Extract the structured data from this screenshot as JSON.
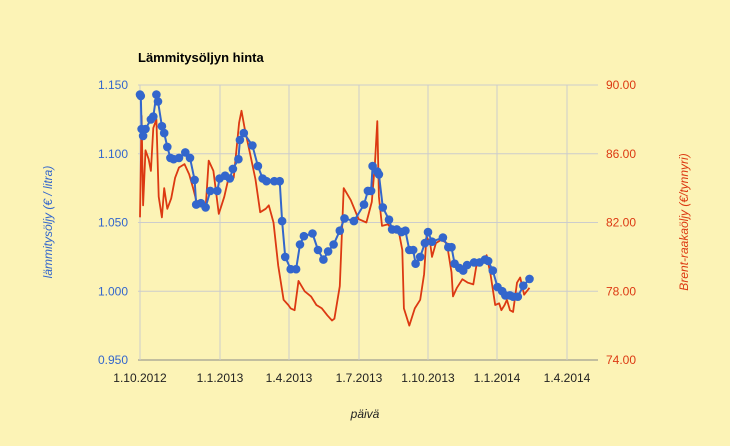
{
  "chart_data": {
    "type": "line",
    "title": "Lämmitysöljyn hinta",
    "xlabel": "päivä",
    "ylabel_left": "lämmitysöljy (€ / litra)",
    "ylabel_right": "Brent-raakaöljy (€/tynnyri)",
    "x_ticks": [
      "1.10.2012",
      "1.1.2013",
      "1.4.2013",
      "1.7.2013",
      "1.10.2013",
      "1.1.2014",
      "1.4.2014"
    ],
    "y_left_ticks": [
      "0.950",
      "1.000",
      "1.050",
      "1.100",
      "1.150"
    ],
    "y_right_ticks": [
      "74.00",
      "78.00",
      "82.00",
      "86.00",
      "90.00"
    ],
    "ylim_left": [
      0.95,
      1.15
    ],
    "ylim_right": [
      74,
      90
    ],
    "grid": true,
    "colors": {
      "left_series": "#3366cc",
      "right_series": "#dc3912",
      "background": "#fcf3b6",
      "grid": "#cccccc"
    },
    "series": [
      {
        "axis": "left",
        "marker": "circle",
        "points": [
          [
            "2012-10-01",
            1.143
          ],
          [
            "2012-10-02",
            1.142
          ],
          [
            "2012-10-03",
            1.118
          ],
          [
            "2012-10-05",
            1.113
          ],
          [
            "2012-10-08",
            1.118
          ],
          [
            "2012-10-15",
            1.125
          ],
          [
            "2012-10-18",
            1.127
          ],
          [
            "2012-10-22",
            1.143
          ],
          [
            "2012-10-24",
            1.138
          ],
          [
            "2012-10-29",
            1.12
          ],
          [
            "2012-11-01",
            1.115
          ],
          [
            "2012-11-05",
            1.105
          ],
          [
            "2012-11-09",
            1.097
          ],
          [
            "2012-11-13",
            1.096
          ],
          [
            "2012-11-20",
            1.097
          ],
          [
            "2012-11-28",
            1.101
          ],
          [
            "2012-12-04",
            1.097
          ],
          [
            "2012-12-10",
            1.081
          ],
          [
            "2012-12-12",
            1.063
          ],
          [
            "2012-12-18",
            1.064
          ],
          [
            "2012-12-24",
            1.061
          ],
          [
            "2012-12-30",
            1.073
          ],
          [
            "2013-01-08",
            1.073
          ],
          [
            "2013-01-11",
            1.082
          ],
          [
            "2013-01-18",
            1.084
          ],
          [
            "2013-01-24",
            1.082
          ],
          [
            "2013-01-28",
            1.089
          ],
          [
            "2013-02-04",
            1.096
          ],
          [
            "2013-02-06",
            1.11
          ],
          [
            "2013-02-11",
            1.115
          ],
          [
            "2013-02-22",
            1.106
          ],
          [
            "2013-03-01",
            1.091
          ],
          [
            "2013-03-07",
            1.082
          ],
          [
            "2013-03-12",
            1.08
          ],
          [
            "2013-03-22",
            1.08
          ],
          [
            "2013-03-29",
            1.08
          ],
          [
            "2013-04-01",
            1.051
          ],
          [
            "2013-04-05",
            1.025
          ],
          [
            "2013-04-12",
            1.016
          ],
          [
            "2013-04-19",
            1.016
          ],
          [
            "2013-04-24",
            1.034
          ],
          [
            "2013-04-29",
            1.04
          ],
          [
            "2013-05-10",
            1.042
          ],
          [
            "2013-05-17",
            1.03
          ],
          [
            "2013-05-24",
            1.023
          ],
          [
            "2013-05-30",
            1.029
          ],
          [
            "2013-06-06",
            1.034
          ],
          [
            "2013-06-14",
            1.044
          ],
          [
            "2013-06-20",
            1.053
          ],
          [
            "2013-07-02",
            1.051
          ],
          [
            "2013-07-15",
            1.063
          ],
          [
            "2013-07-20",
            1.073
          ],
          [
            "2013-07-24",
            1.073
          ],
          [
            "2013-07-26",
            1.091
          ],
          [
            "2013-08-01",
            1.087
          ],
          [
            "2013-08-03",
            1.085
          ],
          [
            "2013-08-08",
            1.061
          ],
          [
            "2013-08-16",
            1.052
          ],
          [
            "2013-08-20",
            1.045
          ],
          [
            "2013-08-26",
            1.045
          ],
          [
            "2013-09-01",
            1.043
          ],
          [
            "2013-09-06",
            1.044
          ],
          [
            "2013-09-11",
            1.03
          ],
          [
            "2013-09-16",
            1.03
          ],
          [
            "2013-09-19",
            1.02
          ],
          [
            "2013-09-25",
            1.025
          ],
          [
            "2013-10-01",
            1.035
          ],
          [
            "2013-10-05",
            1.043
          ],
          [
            "2013-10-10",
            1.036
          ],
          [
            "2013-10-24",
            1.039
          ],
          [
            "2013-10-31",
            1.032
          ],
          [
            "2013-11-04",
            1.032
          ],
          [
            "2013-11-08",
            1.02
          ],
          [
            "2013-11-14",
            1.017
          ],
          [
            "2013-11-19",
            1.015
          ],
          [
            "2013-11-24",
            1.019
          ],
          [
            "2013-12-03",
            1.021
          ],
          [
            "2013-12-10",
            1.021
          ],
          [
            "2013-12-17",
            1.023
          ],
          [
            "2013-12-21",
            1.022
          ],
          [
            "2013-12-27",
            1.015
          ],
          [
            "2014-01-02",
            1.003
          ],
          [
            "2014-01-08",
            1.0
          ],
          [
            "2014-01-12",
            0.997
          ],
          [
            "2014-01-18",
            0.997
          ],
          [
            "2014-01-22",
            0.996
          ],
          [
            "2014-01-28",
            0.996
          ],
          [
            "2014-02-04",
            1.004
          ],
          [
            "2014-02-12",
            1.009
          ]
        ]
      },
      {
        "axis": "right",
        "marker": "none",
        "points": [
          [
            "2012-10-01",
            82.3
          ],
          [
            "2012-10-03",
            88.2
          ],
          [
            "2012-10-05",
            83.0
          ],
          [
            "2012-10-08",
            86.2
          ],
          [
            "2012-10-12",
            85.7
          ],
          [
            "2012-10-15",
            85.0
          ],
          [
            "2012-10-18",
            87.5
          ],
          [
            "2012-10-22",
            88.0
          ],
          [
            "2012-10-25",
            83.5
          ],
          [
            "2012-10-29",
            82.3
          ],
          [
            "2012-11-01",
            84.0
          ],
          [
            "2012-11-05",
            82.8
          ],
          [
            "2012-11-10",
            83.4
          ],
          [
            "2012-11-15",
            84.6
          ],
          [
            "2012-11-20",
            85.2
          ],
          [
            "2012-11-27",
            85.4
          ],
          [
            "2012-12-03",
            84.8
          ],
          [
            "2012-12-08",
            84.0
          ],
          [
            "2012-12-12",
            83.3
          ],
          [
            "2012-12-18",
            83.0
          ],
          [
            "2012-12-24",
            82.8
          ],
          [
            "2012-12-28",
            85.6
          ],
          [
            "2013-01-03",
            85.0
          ],
          [
            "2013-01-10",
            82.5
          ],
          [
            "2013-01-17",
            83.5
          ],
          [
            "2013-01-22",
            84.5
          ],
          [
            "2013-01-29",
            84.6
          ],
          [
            "2013-02-05",
            87.8
          ],
          [
            "2013-02-08",
            88.5
          ],
          [
            "2013-02-12",
            87.5
          ],
          [
            "2013-02-19",
            86.0
          ],
          [
            "2013-02-26",
            84.5
          ],
          [
            "2013-03-04",
            82.6
          ],
          [
            "2013-03-11",
            82.8
          ],
          [
            "2013-03-15",
            83.0
          ],
          [
            "2013-03-21",
            82.0
          ],
          [
            "2013-03-27",
            79.5
          ],
          [
            "2013-04-03",
            77.5
          ],
          [
            "2013-04-09",
            77.2
          ],
          [
            "2013-04-12",
            77.0
          ],
          [
            "2013-04-17",
            76.9
          ],
          [
            "2013-04-22",
            78.6
          ],
          [
            "2013-04-30",
            78.0
          ],
          [
            "2013-05-08",
            77.7
          ],
          [
            "2013-05-15",
            77.2
          ],
          [
            "2013-05-22",
            77.0
          ],
          [
            "2013-05-29",
            76.6
          ],
          [
            "2013-06-04",
            76.3
          ],
          [
            "2013-06-07",
            76.4
          ],
          [
            "2013-06-14",
            78.3
          ],
          [
            "2013-06-19",
            84.0
          ],
          [
            "2013-06-28",
            83.3
          ],
          [
            "2013-07-08",
            82.2
          ],
          [
            "2013-07-18",
            82.0
          ],
          [
            "2013-07-25",
            83.2
          ],
          [
            "2013-07-29",
            85.5
          ],
          [
            "2013-08-01",
            87.9
          ],
          [
            "2013-08-03",
            83.5
          ],
          [
            "2013-08-07",
            81.8
          ],
          [
            "2013-08-15",
            81.9
          ],
          [
            "2013-08-21",
            81.4
          ],
          [
            "2013-08-28",
            81.6
          ],
          [
            "2013-09-02",
            80.4
          ],
          [
            "2013-09-04",
            77.0
          ],
          [
            "2013-09-11",
            76.0
          ],
          [
            "2013-09-18",
            77.0
          ],
          [
            "2013-09-25",
            77.5
          ],
          [
            "2013-09-30",
            79.0
          ],
          [
            "2013-10-03",
            81.2
          ],
          [
            "2013-10-08",
            80.7
          ],
          [
            "2013-10-10",
            80.0
          ],
          [
            "2013-10-15",
            80.8
          ],
          [
            "2013-10-22",
            81.0
          ],
          [
            "2013-10-29",
            80.8
          ],
          [
            "2013-11-04",
            79.1
          ],
          [
            "2013-11-06",
            77.7
          ],
          [
            "2013-11-11",
            78.2
          ],
          [
            "2013-11-18",
            78.7
          ],
          [
            "2013-11-25",
            78.5
          ],
          [
            "2013-12-02",
            78.4
          ],
          [
            "2013-12-06",
            79.5
          ],
          [
            "2013-12-11",
            79.5
          ],
          [
            "2013-12-16",
            79.8
          ],
          [
            "2013-12-19",
            80.1
          ],
          [
            "2013-12-24",
            79.0
          ],
          [
            "2013-12-30",
            77.2
          ],
          [
            "2014-01-04",
            77.3
          ],
          [
            "2014-01-07",
            76.9
          ],
          [
            "2014-01-11",
            77.2
          ],
          [
            "2014-01-14",
            77.5
          ],
          [
            "2014-01-18",
            76.9
          ],
          [
            "2014-01-22",
            76.8
          ],
          [
            "2014-01-27",
            78.5
          ],
          [
            "2014-01-31",
            78.8
          ],
          [
            "2014-02-05",
            77.8
          ],
          [
            "2014-02-12",
            78.2
          ]
        ]
      }
    ]
  }
}
